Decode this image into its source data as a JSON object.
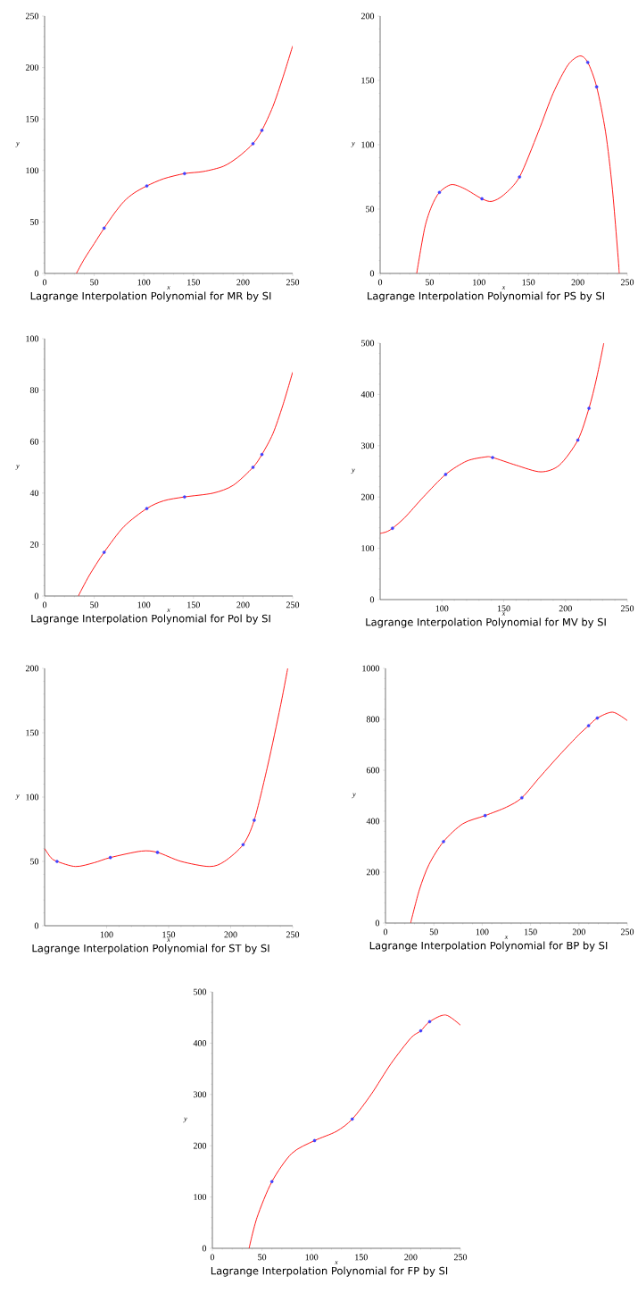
{
  "chart_data": [
    {
      "type": "line",
      "title": "Lagrange Interpolation Polynomial for MR by SI",
      "xlabel": "x",
      "ylabel": "y",
      "xlim": [
        0,
        250
      ],
      "ylim": [
        0,
        250
      ],
      "xticks": [
        0,
        50,
        100,
        150,
        200,
        250
      ],
      "yticks": [
        0,
        50,
        100,
        150,
        200,
        250
      ],
      "series": [
        {
          "color": "#ff0000",
          "marker": "none",
          "x": [
            32,
            40,
            50,
            60,
            70,
            80,
            90,
            103,
            120,
            141,
            160,
            180,
            195,
            210,
            219,
            230,
            240,
            250
          ],
          "values": [
            0,
            14,
            29,
            44,
            58,
            70,
            78,
            85,
            92,
            97,
            99,
            104,
            113,
            126,
            139,
            162,
            190,
            221
          ]
        },
        {
          "type": "scatter",
          "color": "#4040ff",
          "marker": "circle",
          "x": [
            60,
            103,
            141,
            210,
            219
          ],
          "values": [
            44,
            85,
            97,
            126,
            139
          ]
        }
      ]
    },
    {
      "type": "line",
      "title": "Lagrange Interpolation Polynomial for PS by SI",
      "xlabel": "x",
      "ylabel": "y",
      "xlim": [
        0,
        250
      ],
      "ylim": [
        0,
        200
      ],
      "xticks": [
        0,
        50,
        100,
        150,
        200,
        250
      ],
      "yticks": [
        0,
        50,
        100,
        150,
        200
      ],
      "series": [
        {
          "color": "#ff0000",
          "marker": "none",
          "x": [
            37,
            45,
            52,
            60,
            72,
            85,
            103,
            113,
            125,
            141,
            160,
            175,
            190,
            202,
            210,
            219,
            228,
            235,
            242
          ],
          "values": [
            0,
            35,
            52,
            63,
            69,
            66,
            58,
            56,
            61,
            75,
            110,
            140,
            162,
            169,
            164,
            145,
            110,
            65,
            0
          ]
        },
        {
          "type": "scatter",
          "color": "#4040ff",
          "marker": "circle",
          "x": [
            60,
            103,
            141,
            210,
            219
          ],
          "values": [
            63,
            58,
            75,
            164,
            145
          ]
        }
      ]
    },
    {
      "type": "line",
      "title": "Lagrange Interpolation Polynomial for Pol by SI",
      "xlabel": "x",
      "ylabel": "y",
      "xlim": [
        0,
        250
      ],
      "ylim": [
        0,
        100
      ],
      "xticks": [
        0,
        50,
        100,
        150,
        200,
        250
      ],
      "yticks": [
        0,
        20,
        40,
        60,
        80,
        100
      ],
      "series": [
        {
          "color": "#ff0000",
          "marker": "none",
          "x": [
            34,
            45,
            60,
            80,
            103,
            120,
            141,
            170,
            190,
            210,
            219,
            230,
            240,
            250
          ],
          "values": [
            0,
            8,
            17,
            27,
            34,
            37,
            38.5,
            40,
            43,
            50,
            55,
            63,
            74,
            87
          ]
        },
        {
          "type": "scatter",
          "color": "#4040ff",
          "marker": "circle",
          "x": [
            60,
            103,
            141,
            210,
            219
          ],
          "values": [
            17,
            34,
            38.5,
            50,
            55
          ]
        }
      ]
    },
    {
      "type": "line",
      "title": "Lagrange Interpolation Polynomial for MV by SI",
      "xlabel": "x",
      "ylabel": "y",
      "xlim": [
        50,
        250
      ],
      "ylim": [
        0,
        500
      ],
      "xticks": [
        100,
        150,
        200,
        250
      ],
      "yticks": [
        0,
        100,
        200,
        300,
        400,
        500
      ],
      "series": [
        {
          "color": "#ff0000",
          "marker": "none",
          "x": [
            50,
            55,
            60,
            70,
            85,
            103,
            120,
            135,
            141,
            160,
            180,
            195,
            210,
            219,
            225,
            231
          ],
          "values": [
            129,
            132,
            139,
            160,
            200,
            244,
            270,
            278,
            277,
            262,
            249,
            262,
            311,
            373,
            430,
            500
          ]
        },
        {
          "type": "scatter",
          "color": "#4040ff",
          "marker": "circle",
          "x": [
            60,
            103,
            141,
            210,
            219
          ],
          "values": [
            139,
            244,
            277,
            311,
            373
          ]
        }
      ]
    },
    {
      "type": "line",
      "title": "Lagrange Interpolation Polynomial for ST by SI",
      "xlabel": "x",
      "ylabel": "y",
      "xlim": [
        50,
        250
      ],
      "ylim": [
        0,
        200
      ],
      "xticks": [
        100,
        150,
        200,
        250
      ],
      "yticks": [
        0,
        50,
        100,
        150,
        200
      ],
      "series": [
        {
          "color": "#ff0000",
          "marker": "none",
          "x": [
            50,
            55,
            60,
            75,
            90,
            103,
            128,
            141,
            160,
            183,
            195,
            210,
            219,
            230,
            240,
            246
          ],
          "values": [
            60,
            53,
            50,
            46,
            49,
            53,
            58,
            57,
            50,
            46,
            50,
            63,
            82,
            125,
            170,
            200
          ]
        },
        {
          "type": "scatter",
          "color": "#4040ff",
          "marker": "circle",
          "x": [
            60,
            103,
            141,
            210,
            219
          ],
          "values": [
            50,
            53,
            57,
            63,
            82
          ]
        }
      ]
    },
    {
      "type": "line",
      "title": "Lagrange Interpolation Polynomial for BP by SI",
      "xlabel": "x",
      "ylabel": "y",
      "xlim": [
        0,
        250
      ],
      "ylim": [
        0,
        1000
      ],
      "xticks": [
        0,
        50,
        100,
        150,
        200,
        250
      ],
      "yticks": [
        0,
        200,
        400,
        600,
        800,
        1000
      ],
      "series": [
        {
          "color": "#ff0000",
          "marker": "none",
          "x": [
            26,
            35,
            45,
            60,
            80,
            103,
            125,
            141,
            160,
            180,
            200,
            210,
            219,
            235,
            250
          ],
          "values": [
            0,
            130,
            230,
            320,
            390,
            422,
            455,
            492,
            575,
            660,
            740,
            775,
            805,
            828,
            795
          ]
        },
        {
          "type": "scatter",
          "color": "#4040ff",
          "marker": "circle",
          "x": [
            60,
            103,
            141,
            210,
            219
          ],
          "values": [
            320,
            422,
            492,
            775,
            805
          ]
        }
      ]
    },
    {
      "type": "line",
      "title": "Lagrange Interpolation Polynomial for FP by SI",
      "xlabel": "x",
      "ylabel": "y",
      "xlim": [
        0,
        250
      ],
      "ylim": [
        0,
        500
      ],
      "xticks": [
        0,
        50,
        100,
        150,
        200,
        250
      ],
      "yticks": [
        0,
        100,
        200,
        300,
        400,
        500
      ],
      "series": [
        {
          "color": "#ff0000",
          "marker": "none",
          "x": [
            37,
            45,
            60,
            80,
            103,
            125,
            141,
            160,
            180,
            200,
            210,
            219,
            235,
            250
          ],
          "values": [
            0,
            60,
            130,
            185,
            210,
            228,
            252,
            300,
            360,
            410,
            424,
            442,
            455,
            435
          ]
        },
        {
          "type": "scatter",
          "color": "#4040ff",
          "marker": "circle",
          "x": [
            60,
            103,
            141,
            210,
            219
          ],
          "values": [
            130,
            210,
            252,
            424,
            442
          ]
        }
      ]
    }
  ]
}
